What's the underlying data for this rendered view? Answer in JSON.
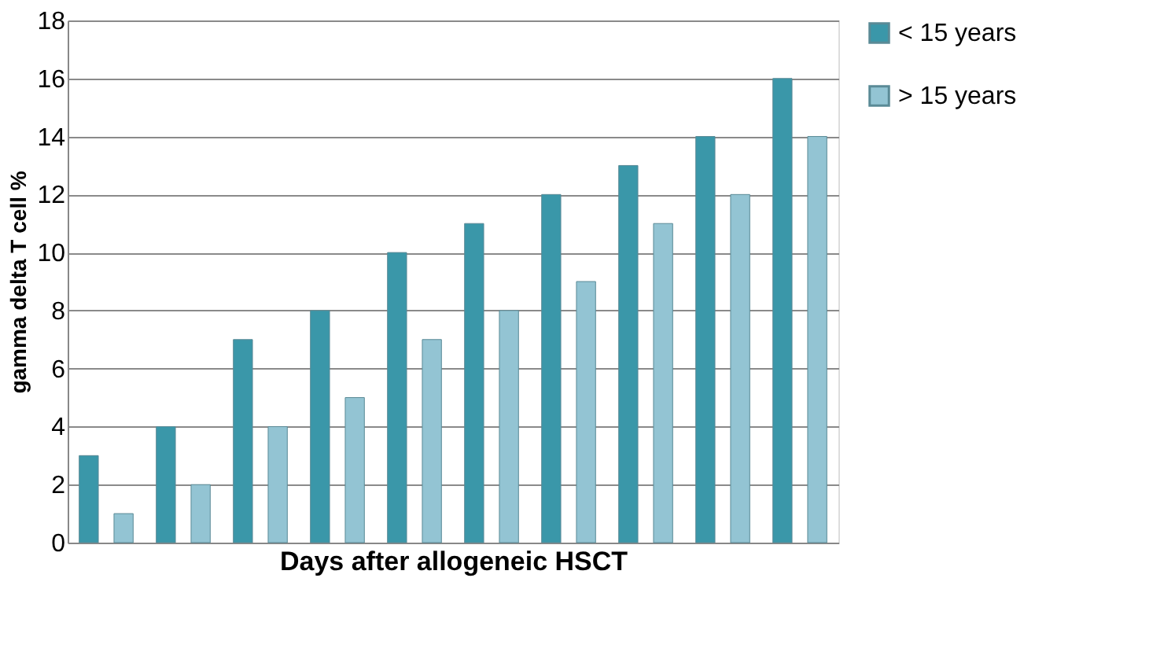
{
  "chart_data": {
    "type": "bar",
    "xlabel": "Days after allogeneic HSCT",
    "ylabel": "gamma delta T cell %",
    "categories": [
      null,
      null,
      null,
      null,
      null,
      null,
      null,
      null,
      null,
      null
    ],
    "series": [
      {
        "name": "< 15 years",
        "color": "#3a97a9",
        "values": [
          3,
          4,
          7,
          8,
          10,
          11,
          12,
          13,
          14,
          16
        ]
      },
      {
        "name": "> 15 years",
        "color": "#93c4d3",
        "values": [
          1,
          2,
          4,
          5,
          7,
          8,
          9,
          11,
          12,
          14
        ]
      }
    ],
    "ylim": [
      0,
      18
    ],
    "yticks": [
      0,
      2,
      4,
      6,
      8,
      10,
      12,
      14,
      16,
      18
    ],
    "grid": "y",
    "legend": "right",
    "tick_labels": "y"
  }
}
